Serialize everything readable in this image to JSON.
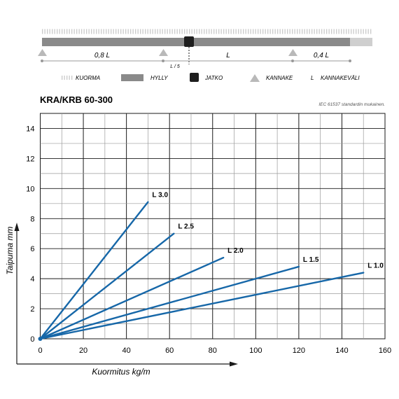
{
  "diagram": {
    "span_labels": {
      "left": "0,8 L",
      "middle": "L",
      "right": "0,4 L",
      "joint_offset": "L / 5"
    },
    "legend": [
      {
        "key": "load",
        "label": "KUORMA"
      },
      {
        "key": "shelf",
        "label": "HYLLY"
      },
      {
        "key": "joint",
        "label": "JATKO"
      },
      {
        "key": "support",
        "label": "KANNAKE"
      },
      {
        "key": "span",
        "symbol": "L",
        "label": "KANNAKEVÄLI"
      }
    ],
    "colors": {
      "beam": "#8a8a8a",
      "load": "#c9c9c9",
      "support": "#b9b9b9",
      "joint": "#1e1e1e"
    }
  },
  "chart_data": {
    "type": "line",
    "title": "KRA/KRB 60-300",
    "note": "IEC 61537 standardin mukainen.",
    "xlabel": "Kuormitus kg/m",
    "ylabel": "Taipuma mm",
    "xlim": [
      0,
      160
    ],
    "ylim": [
      0,
      15
    ],
    "xticks": [
      0,
      20,
      40,
      60,
      80,
      100,
      120,
      140,
      160
    ],
    "yticks": [
      0,
      2,
      4,
      6,
      8,
      10,
      12,
      14
    ],
    "grid": true,
    "line_color": "#1667a8",
    "series": [
      {
        "name": "L 3.0",
        "x": [
          0,
          50
        ],
        "y": [
          0,
          9.1
        ]
      },
      {
        "name": "L 2.5",
        "x": [
          0,
          62
        ],
        "y": [
          0,
          7.0
        ]
      },
      {
        "name": "L 2.0",
        "x": [
          0,
          85
        ],
        "y": [
          0,
          5.4
        ]
      },
      {
        "name": "L 1.5",
        "x": [
          0,
          120
        ],
        "y": [
          0,
          4.8
        ]
      },
      {
        "name": "L 1.0",
        "x": [
          0,
          150
        ],
        "y": [
          0,
          4.4
        ]
      }
    ]
  }
}
